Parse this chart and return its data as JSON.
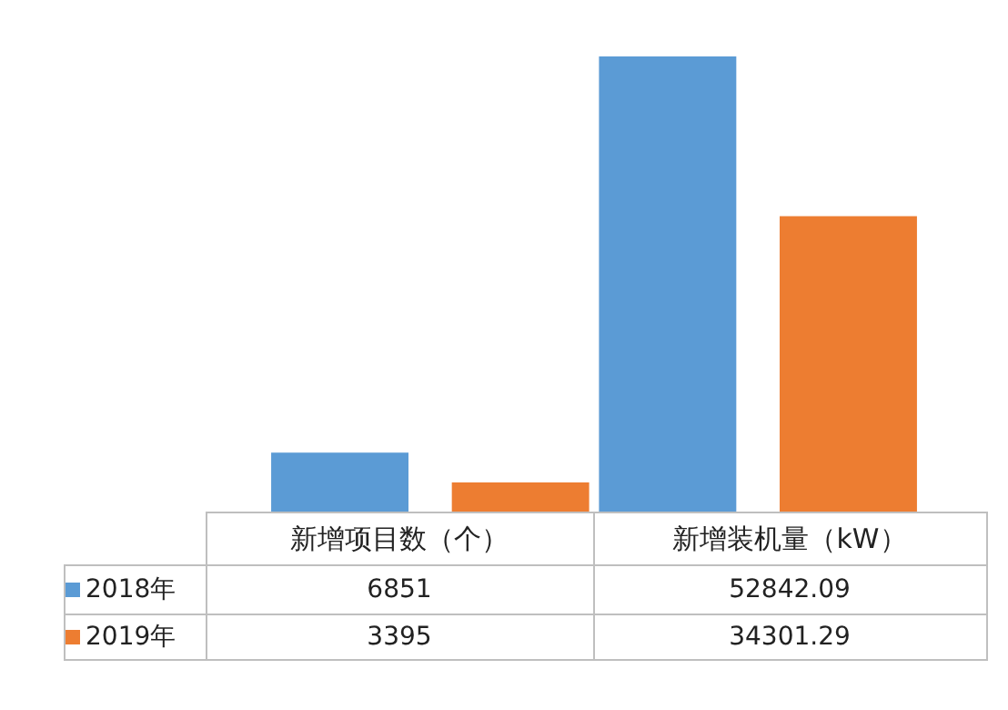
{
  "chart_data": {
    "type": "bar",
    "categories": [
      "新增项目数（个）",
      "新增装机量（kW）"
    ],
    "series": [
      {
        "name": "2018年",
        "color": "#5b9bd5",
        "values": [
          6851,
          52842.09
        ]
      },
      {
        "name": "2019年",
        "color": "#ed7d31",
        "values": [
          3395,
          34301.29
        ]
      }
    ],
    "data_labels": true,
    "legend": "bottom"
  }
}
